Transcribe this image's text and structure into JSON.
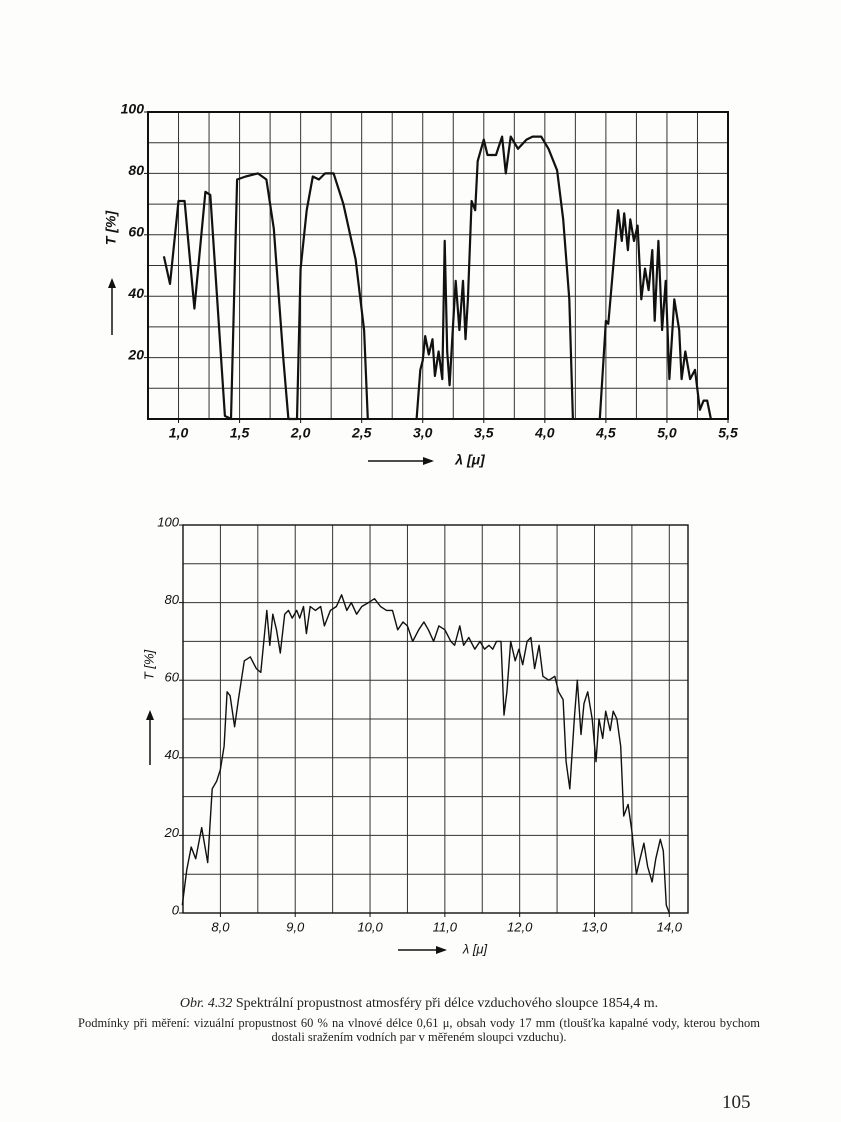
{
  "chart_data": [
    {
      "type": "line",
      "color": "#111",
      "xlabel": "λ [μ]",
      "ylabel": "T [%]",
      "xlim": [
        0.75,
        5.5
      ],
      "ylim": [
        0,
        100
      ],
      "xticks": [
        {
          "value": 1.0,
          "label": "1,0"
        },
        {
          "value": 1.5,
          "label": "1,5"
        },
        {
          "value": 2.0,
          "label": "2,0"
        },
        {
          "value": 2.5,
          "label": "2,5"
        },
        {
          "value": 3.0,
          "label": "3,0"
        },
        {
          "value": 3.5,
          "label": "3,5"
        },
        {
          "value": 4.0,
          "label": "4,0"
        },
        {
          "value": 4.5,
          "label": "4,5"
        },
        {
          "value": 5.0,
          "label": "5,0"
        },
        {
          "value": 5.5,
          "label": "5,5"
        }
      ],
      "yticks": [
        20,
        40,
        60,
        80,
        100
      ],
      "grid_x": [
        1.0,
        1.25,
        1.5,
        1.75,
        2.0,
        2.25,
        2.5,
        2.75,
        3.0,
        3.25,
        3.5,
        3.75,
        4.0,
        4.25,
        4.5,
        4.75,
        5.0,
        5.25
      ],
      "grid_y": [
        10,
        20,
        30,
        40,
        50,
        60,
        70,
        80,
        90
      ],
      "x": [
        0.88,
        0.93,
        1.0,
        1.05,
        1.13,
        1.22,
        1.26,
        1.38,
        1.43,
        1.48,
        1.55,
        1.65,
        1.72,
        1.78,
        1.86,
        1.9,
        1.97,
        2.0,
        2.05,
        2.1,
        2.15,
        2.2,
        2.27,
        2.35,
        2.45,
        2.52,
        2.55,
        null,
        2.95,
        2.98,
        3.0,
        3.02,
        3.05,
        3.08,
        3.1,
        3.13,
        3.16,
        3.18,
        3.2,
        3.22,
        3.25,
        3.27,
        3.3,
        3.33,
        3.35,
        3.37,
        3.4,
        3.43,
        3.45,
        3.5,
        3.53,
        3.6,
        3.65,
        3.68,
        3.72,
        3.78,
        3.85,
        3.9,
        3.97,
        4.03,
        4.1,
        4.15,
        4.2,
        4.23,
        null,
        4.45,
        4.5,
        4.52,
        4.6,
        4.63,
        4.65,
        4.68,
        4.7,
        4.73,
        4.76,
        4.79,
        4.82,
        4.85,
        4.88,
        4.9,
        4.93,
        4.96,
        4.99,
        5.02,
        5.06,
        5.1,
        5.12,
        5.15,
        5.19,
        5.23,
        5.27,
        5.3,
        5.33,
        5.36
      ],
      "values": [
        53,
        44,
        71,
        71,
        36,
        74,
        73,
        1,
        0,
        78,
        79,
        80,
        78,
        62,
        19,
        0,
        0,
        49,
        68,
        79,
        78,
        80,
        80,
        70,
        52,
        29,
        0,
        null,
        0,
        16,
        19,
        27,
        21,
        26,
        14,
        22,
        13,
        58,
        22,
        11,
        32,
        45,
        29,
        45,
        26,
        39,
        71,
        68,
        84,
        91,
        86,
        86,
        92,
        80,
        92,
        88,
        91,
        92,
        92,
        88,
        81,
        65,
        39,
        0,
        null,
        0,
        32,
        31,
        68,
        58,
        67,
        55,
        65,
        58,
        63,
        39,
        49,
        42,
        55,
        32,
        58,
        29,
        45,
        13,
        39,
        29,
        13,
        22,
        13,
        16,
        3,
        6,
        6,
        0
      ]
    },
    {
      "type": "line",
      "color": "#111",
      "xlabel": "λ [μ]",
      "ylabel": "T [%]",
      "xlim": [
        7.5,
        14.25
      ],
      "ylim": [
        0,
        100
      ],
      "xticks": [
        {
          "value": 8.0,
          "label": "8,0"
        },
        {
          "value": 9.0,
          "label": "9,0"
        },
        {
          "value": 10.0,
          "label": "10,0"
        },
        {
          "value": 11.0,
          "label": "11,0"
        },
        {
          "value": 12.0,
          "label": "12,0"
        },
        {
          "value": 13.0,
          "label": "13,0"
        },
        {
          "value": 14.0,
          "label": "14,0"
        }
      ],
      "yticks": [
        0,
        20,
        40,
        60,
        80,
        100
      ],
      "grid_x": [
        8.0,
        8.5,
        9.0,
        9.5,
        10.0,
        10.5,
        11.0,
        11.5,
        12.0,
        12.5,
        13.0,
        13.5,
        14.0
      ],
      "grid_y": [
        10,
        20,
        30,
        40,
        50,
        60,
        70,
        80,
        90
      ],
      "x": [
        7.49,
        7.55,
        7.61,
        7.67,
        7.75,
        7.83,
        7.89,
        7.95,
        8.0,
        8.05,
        8.09,
        8.13,
        8.19,
        8.24,
        8.32,
        8.4,
        8.48,
        8.54,
        8.58,
        8.62,
        8.66,
        8.7,
        8.75,
        8.8,
        8.86,
        8.91,
        8.96,
        9.02,
        9.06,
        9.11,
        9.15,
        9.2,
        9.27,
        9.34,
        9.39,
        9.47,
        9.55,
        9.62,
        9.69,
        9.75,
        9.82,
        9.89,
        9.98,
        10.06,
        10.14,
        10.22,
        10.3,
        10.37,
        10.44,
        10.5,
        10.57,
        10.65,
        10.72,
        10.78,
        10.85,
        10.92,
        11.0,
        11.08,
        11.13,
        11.2,
        11.25,
        11.32,
        11.4,
        11.47,
        11.53,
        11.59,
        11.64,
        11.69,
        11.75,
        11.79,
        11.83,
        11.88,
        11.94,
        11.99,
        12.04,
        12.1,
        12.15,
        12.2,
        12.26,
        12.31,
        12.39,
        12.47,
        12.52,
        12.58,
        12.62,
        12.67,
        12.73,
        12.77,
        12.82,
        12.86,
        12.91,
        12.97,
        13.02,
        13.06,
        13.11,
        13.15,
        13.21,
        13.25,
        13.3,
        13.35,
        13.39,
        13.45,
        13.5,
        13.56,
        13.61,
        13.66,
        13.71,
        13.77,
        13.82,
        13.88,
        13.92,
        13.96,
        14.0
      ],
      "values": [
        2,
        11,
        17,
        14,
        22,
        13,
        32,
        34,
        37,
        43,
        57,
        56,
        48,
        55,
        65,
        66,
        63,
        62,
        70,
        78,
        69,
        77,
        73,
        67,
        77,
        78,
        76,
        78,
        76,
        79,
        72,
        79,
        78,
        79,
        74,
        78,
        79,
        82,
        78,
        80,
        77,
        79,
        80,
        81,
        79,
        78,
        78,
        73,
        75,
        74,
        70,
        73,
        75,
        73,
        70,
        74,
        73,
        70,
        69,
        74,
        69,
        71,
        68,
        70,
        68,
        69,
        68,
        70,
        70,
        51,
        57,
        70,
        65,
        68,
        64,
        70,
        71,
        63,
        69,
        61,
        60,
        61,
        57,
        55,
        39,
        32,
        50,
        60,
        46,
        54,
        57,
        50,
        39,
        50,
        45,
        52,
        47,
        52,
        50,
        43,
        25,
        28,
        21,
        10,
        14,
        18,
        12,
        8,
        14,
        19,
        16,
        2,
        0
      ]
    }
  ],
  "caption": {
    "label": "Obr. 4.32",
    "title": "Spektrální propustnost atmosféry při délce vzduchového sloupce 1854,4 m.",
    "note": "Podmínky při měření: vizuální propustnost 60 % na vlnové délce 0,61 μ, obsah vody 17 mm (tloušťka kapalné vody, kterou bychom dostali sražením vodních par v měřeném sloupci vzduchu)."
  },
  "page_number": "105"
}
